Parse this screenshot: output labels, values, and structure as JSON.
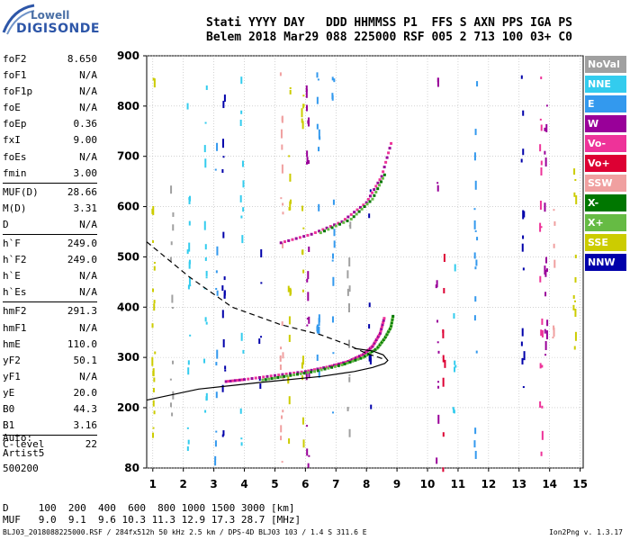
{
  "logo": {
    "line1": "Lowell",
    "line2": "DIGISONDE"
  },
  "header": {
    "line1": "Stati YYYY DAY   DDD HHMMSS P1  FFS S AXN PPS IGA PS",
    "line2": "Belem 2018 Mar29 088 225000 RSF 005 2 713 100 03+ C0"
  },
  "params": [
    {
      "label": "foF2",
      "value": "8.650"
    },
    {
      "label": "foF1",
      "value": "N/A"
    },
    {
      "label": "foF1p",
      "value": "N/A"
    },
    {
      "label": "foE",
      "value": "N/A"
    },
    {
      "label": "foEp",
      "value": "0.36"
    },
    {
      "label": "fxI",
      "value": "9.00"
    },
    {
      "label": "foEs",
      "value": "N/A"
    },
    {
      "label": "fmin",
      "value": "3.00"
    },
    {
      "label": "MUF(D)",
      "value": "28.66"
    },
    {
      "label": "M(D)",
      "value": "3.31"
    },
    {
      "label": "D",
      "value": "N/A"
    },
    {
      "label": "h`F",
      "value": "249.0"
    },
    {
      "label": "h`F2",
      "value": "249.0"
    },
    {
      "label": "h`E",
      "value": "N/A"
    },
    {
      "label": "h`Es",
      "value": "N/A"
    },
    {
      "label": "hmF2",
      "value": "291.3"
    },
    {
      "label": "hmF1",
      "value": "N/A"
    },
    {
      "label": "hmE",
      "value": "110.0"
    },
    {
      "label": "yF2",
      "value": "50.1"
    },
    {
      "label": "yF1",
      "value": "N/A"
    },
    {
      "label": "yE",
      "value": "20.0"
    },
    {
      "label": "B0",
      "value": "44.3"
    },
    {
      "label": "B1",
      "value": "3.16"
    },
    {
      "label": "C-level",
      "value": "22"
    }
  ],
  "auto_block": {
    "line1": "Auto:",
    "line2": "Artist5",
    "line3": "500200"
  },
  "legend": [
    {
      "label": "NoVal",
      "color": "#a0a0a0"
    },
    {
      "label": "NNE",
      "color": "#33ccee"
    },
    {
      "label": "E",
      "color": "#3399ee"
    },
    {
      "label": "W",
      "color": "#990099"
    },
    {
      "label": "Vo-",
      "color": "#ee3399"
    },
    {
      "label": "Vo+",
      "color": "#dd0033"
    },
    {
      "label": "SSW",
      "color": "#f0a0a0"
    },
    {
      "label": "X-",
      "color": "#007700"
    },
    {
      "label": "X+",
      "color": "#66bb44"
    },
    {
      "label": "SSE",
      "color": "#cccc00"
    },
    {
      "label": "NNW",
      "color": "#0000aa"
    }
  ],
  "muf_table": {
    "d_row": "D     100  200  400  600  800 1000 1500 3000 [km]",
    "muf_row": "MUF   9.0  9.1  9.6 10.3 11.3 12.9 17.3 28.7 [MHz]"
  },
  "footer": "BLJ03_2018088225000.RSF / 284fx512h 50 kHz 2.5 km / DPS-4D BLJ03 103 / 1.4 S 311.6 E",
  "version": "Ion2Png v. 1.3.17",
  "chart_data": {
    "type": "scatter",
    "xlim": [
      0.8,
      15.1
    ],
    "ylim": [
      80,
      900
    ],
    "xticks": [
      1,
      2,
      3,
      4,
      5,
      6,
      7,
      8,
      9,
      10,
      11,
      12,
      13,
      14,
      15
    ],
    "yticks": [
      80,
      200,
      300,
      400,
      500,
      600,
      700,
      800,
      900
    ],
    "grid": true,
    "legend_position": "right",
    "o_trace": [
      [
        3.4,
        252
      ],
      [
        4.0,
        256
      ],
      [
        5.0,
        264
      ],
      [
        6.0,
        272
      ],
      [
        6.8,
        282
      ],
      [
        7.4,
        292
      ],
      [
        7.9,
        306
      ],
      [
        8.2,
        322
      ],
      [
        8.45,
        348
      ],
      [
        8.6,
        382
      ]
    ],
    "x_trace": [
      [
        4.6,
        255
      ],
      [
        5.4,
        263
      ],
      [
        6.3,
        272
      ],
      [
        7.2,
        285
      ],
      [
        7.9,
        300
      ],
      [
        8.35,
        318
      ],
      [
        8.6,
        338
      ],
      [
        8.8,
        360
      ],
      [
        8.88,
        385
      ]
    ],
    "o_upper": [
      [
        5.2,
        528
      ],
      [
        6.2,
        545
      ],
      [
        7.2,
        570
      ],
      [
        8.0,
        608
      ],
      [
        8.5,
        660
      ],
      [
        8.85,
        735
      ]
    ],
    "x_upper": [
      [
        6.5,
        548
      ],
      [
        7.5,
        575
      ],
      [
        8.2,
        615
      ],
      [
        8.65,
        670
      ]
    ],
    "profile": [
      [
        0.8,
        215
      ],
      [
        2.5,
        237
      ],
      [
        4.5,
        250
      ],
      [
        6.5,
        262
      ],
      [
        7.6,
        272
      ],
      [
        8.2,
        280
      ],
      [
        8.6,
        288
      ],
      [
        8.7,
        294
      ],
      [
        8.55,
        305
      ],
      [
        8.2,
        313
      ],
      [
        7.6,
        318
      ]
    ],
    "virtual_dashed": [
      [
        0.8,
        530
      ],
      [
        2.2,
        460
      ],
      [
        3.6,
        400
      ],
      [
        5.2,
        365
      ],
      [
        6.5,
        345
      ],
      [
        7.4,
        325
      ],
      [
        8.0,
        308
      ],
      [
        8.4,
        300
      ],
      [
        8.6,
        296
      ]
    ],
    "noise_columns": [
      {
        "x": 1.0,
        "y_from": 90,
        "y_to": 880,
        "color": "#cccc00"
      },
      {
        "x": 1.6,
        "y_from": 160,
        "y_to": 740,
        "color": "#a0a0a0"
      },
      {
        "x": 2.15,
        "y_from": 95,
        "y_to": 890,
        "color": "#33ccee"
      },
      {
        "x": 2.7,
        "y_from": 130,
        "y_to": 880,
        "color": "#33ccee"
      },
      {
        "x": 3.05,
        "y_from": 95,
        "y_to": 730,
        "color": "#3399ee"
      },
      {
        "x": 3.3,
        "y_from": 80,
        "y_to": 900,
        "color": "#0000aa"
      },
      {
        "x": 3.9,
        "y_from": 130,
        "y_to": 870,
        "color": "#33ccee"
      },
      {
        "x": 4.5,
        "y_from": 200,
        "y_to": 620,
        "color": "#0000aa"
      },
      {
        "x": 5.2,
        "y_from": 90,
        "y_to": 880,
        "color": "#f0a0a0"
      },
      {
        "x": 5.45,
        "y_from": 120,
        "y_to": 890,
        "color": "#cccc00"
      },
      {
        "x": 5.9,
        "y_from": 90,
        "y_to": 870,
        "color": "#cccc00"
      },
      {
        "x": 6.05,
        "y_from": 80,
        "y_to": 900,
        "color": "#990099"
      },
      {
        "x": 6.4,
        "y_from": 200,
        "y_to": 880,
        "color": "#3399ee"
      },
      {
        "x": 6.9,
        "y_from": 90,
        "y_to": 880,
        "color": "#3399ee"
      },
      {
        "x": 7.4,
        "y_from": 150,
        "y_to": 600,
        "color": "#a0a0a0"
      },
      {
        "x": 8.1,
        "y_from": 150,
        "y_to": 650,
        "color": "#0000aa"
      },
      {
        "x": 10.3,
        "y_from": 100,
        "y_to": 890,
        "color": "#990099"
      },
      {
        "x": 10.5,
        "y_from": 80,
        "y_to": 620,
        "color": "#dd0033"
      },
      {
        "x": 10.85,
        "y_from": 150,
        "y_to": 520,
        "color": "#33ccee"
      },
      {
        "x": 11.55,
        "y_from": 90,
        "y_to": 880,
        "color": "#3399ee"
      },
      {
        "x": 13.1,
        "y_from": 200,
        "y_to": 880,
        "color": "#0000aa"
      },
      {
        "x": 13.7,
        "y_from": 90,
        "y_to": 860,
        "color": "#ee3399"
      },
      {
        "x": 13.85,
        "y_from": 260,
        "y_to": 840,
        "color": "#990099"
      },
      {
        "x": 14.1,
        "y_from": 280,
        "y_to": 620,
        "color": "#f0a0a0"
      },
      {
        "x": 14.8,
        "y_from": 300,
        "y_to": 830,
        "color": "#cccc00"
      }
    ]
  }
}
